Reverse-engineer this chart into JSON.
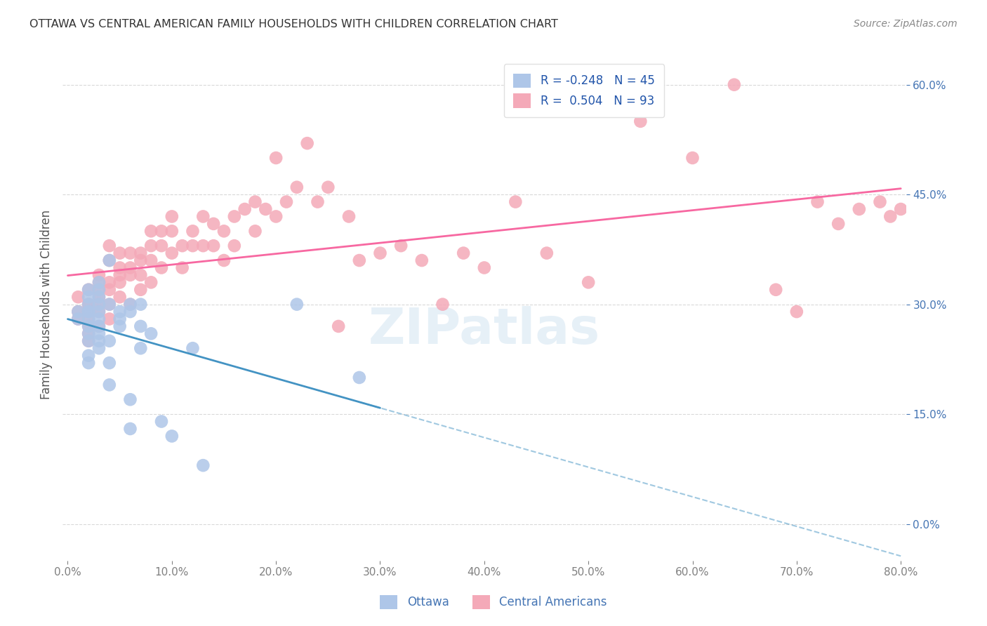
{
  "title": "OTTAWA VS CENTRAL AMERICAN FAMILY HOUSEHOLDS WITH CHILDREN CORRELATION CHART",
  "source": "Source: ZipAtlas.com",
  "ylabel": "Family Households with Children",
  "xlabel_ticks": [
    "0.0%",
    "10.0%",
    "20.0%",
    "30.0%",
    "40.0%",
    "50.0%",
    "60.0%",
    "70.0%",
    "80.0%"
  ],
  "ylabel_ticks": [
    "0.0%",
    "15.0%",
    "30.0%",
    "45.0%",
    "60.0%"
  ],
  "xlim": [
    0.0,
    0.8
  ],
  "ylim": [
    -0.05,
    0.65
  ],
  "legend_entries": [
    {
      "label": "R = -0.248   N = 45",
      "color": "#aec6e8"
    },
    {
      "label": "R =  0.504   N = 93",
      "color": "#f4a9b8"
    }
  ],
  "bottom_legend": [
    "Ottawa",
    "Central Americans"
  ],
  "watermark": "ZIPatlas",
  "ottawa_R": -0.248,
  "central_R": 0.504,
  "ottawa_color": "#6baed6",
  "central_color": "#f768a1",
  "ottawa_scatter_color": "#aec6e8",
  "central_scatter_color": "#f4a9b8",
  "ottawa_line_color": "#4393c3",
  "central_line_color": "#f768a1",
  "background_color": "#ffffff",
  "grid_color": "#d0d0d0",
  "ottawa_x": [
    0.01,
    0.01,
    0.02,
    0.02,
    0.02,
    0.02,
    0.02,
    0.02,
    0.02,
    0.02,
    0.02,
    0.02,
    0.02,
    0.03,
    0.03,
    0.03,
    0.03,
    0.03,
    0.03,
    0.03,
    0.03,
    0.03,
    0.03,
    0.04,
    0.04,
    0.04,
    0.04,
    0.04,
    0.05,
    0.05,
    0.05,
    0.06,
    0.06,
    0.06,
    0.06,
    0.07,
    0.07,
    0.07,
    0.08,
    0.09,
    0.1,
    0.12,
    0.13,
    0.22,
    0.28
  ],
  "ottawa_y": [
    0.29,
    0.28,
    0.32,
    0.31,
    0.3,
    0.29,
    0.29,
    0.28,
    0.27,
    0.26,
    0.25,
    0.23,
    0.22,
    0.33,
    0.32,
    0.31,
    0.3,
    0.29,
    0.28,
    0.27,
    0.26,
    0.25,
    0.24,
    0.36,
    0.3,
    0.25,
    0.22,
    0.19,
    0.29,
    0.28,
    0.27,
    0.3,
    0.29,
    0.17,
    0.13,
    0.3,
    0.27,
    0.24,
    0.26,
    0.14,
    0.12,
    0.24,
    0.08,
    0.3,
    0.2
  ],
  "central_x": [
    0.01,
    0.01,
    0.01,
    0.02,
    0.02,
    0.02,
    0.02,
    0.02,
    0.02,
    0.02,
    0.02,
    0.03,
    0.03,
    0.03,
    0.03,
    0.03,
    0.03,
    0.03,
    0.04,
    0.04,
    0.04,
    0.04,
    0.04,
    0.04,
    0.05,
    0.05,
    0.05,
    0.05,
    0.05,
    0.06,
    0.06,
    0.06,
    0.06,
    0.07,
    0.07,
    0.07,
    0.07,
    0.08,
    0.08,
    0.08,
    0.08,
    0.09,
    0.09,
    0.09,
    0.1,
    0.1,
    0.1,
    0.11,
    0.11,
    0.12,
    0.12,
    0.13,
    0.13,
    0.14,
    0.14,
    0.15,
    0.15,
    0.16,
    0.16,
    0.17,
    0.18,
    0.18,
    0.19,
    0.2,
    0.2,
    0.21,
    0.22,
    0.23,
    0.24,
    0.25,
    0.26,
    0.27,
    0.28,
    0.3,
    0.32,
    0.34,
    0.36,
    0.38,
    0.4,
    0.43,
    0.46,
    0.5,
    0.55,
    0.6,
    0.64,
    0.68,
    0.7,
    0.72,
    0.74,
    0.76,
    0.78,
    0.79,
    0.8
  ],
  "central_y": [
    0.29,
    0.31,
    0.28,
    0.32,
    0.3,
    0.29,
    0.28,
    0.27,
    0.26,
    0.25,
    0.3,
    0.34,
    0.33,
    0.32,
    0.31,
    0.3,
    0.29,
    0.27,
    0.38,
    0.36,
    0.33,
    0.32,
    0.3,
    0.28,
    0.37,
    0.35,
    0.34,
    0.33,
    0.31,
    0.37,
    0.35,
    0.34,
    0.3,
    0.37,
    0.36,
    0.34,
    0.32,
    0.4,
    0.38,
    0.36,
    0.33,
    0.4,
    0.38,
    0.35,
    0.42,
    0.4,
    0.37,
    0.38,
    0.35,
    0.4,
    0.38,
    0.42,
    0.38,
    0.41,
    0.38,
    0.4,
    0.36,
    0.42,
    0.38,
    0.43,
    0.44,
    0.4,
    0.43,
    0.42,
    0.5,
    0.44,
    0.46,
    0.52,
    0.44,
    0.46,
    0.27,
    0.42,
    0.36,
    0.37,
    0.38,
    0.36,
    0.3,
    0.37,
    0.35,
    0.44,
    0.37,
    0.33,
    0.55,
    0.5,
    0.6,
    0.32,
    0.29,
    0.44,
    0.41,
    0.43,
    0.44,
    0.42,
    0.43
  ]
}
